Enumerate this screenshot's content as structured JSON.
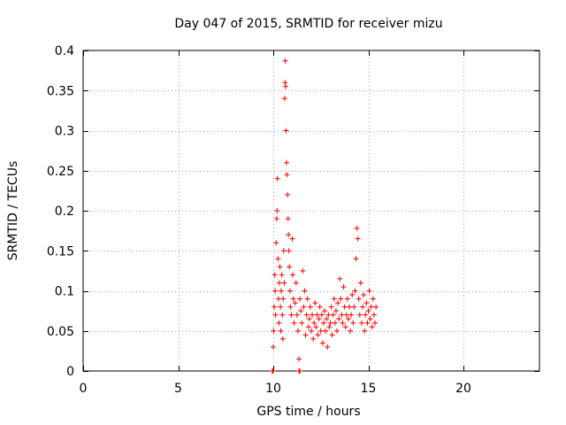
{
  "chart_data": {
    "type": "scatter",
    "title": "Day 047 of 2015, SRMTID for receiver mizu",
    "xlabel": "GPS time / hours",
    "ylabel": "SRMTID / TECUs",
    "xlim": [
      0,
      24
    ],
    "ylim": [
      0,
      0.4
    ],
    "xticks": [
      0,
      5,
      10,
      15,
      20
    ],
    "yticks": [
      0,
      0.05,
      0.1,
      0.15,
      0.2,
      0.25,
      0.3,
      0.35,
      0.4
    ],
    "xtick_labels": [
      "0",
      "5",
      "10",
      "15",
      "20"
    ],
    "ytick_labels": [
      "0",
      "0.05",
      "0.1",
      "0.15",
      "0.2",
      "0.25",
      "0.3",
      "0.35",
      "0.4"
    ],
    "grid": true,
    "marker": "+",
    "color": "#ff0000",
    "series": [
      {
        "name": "mizu",
        "points": [
          [
            9.95,
            0.0
          ],
          [
            10.0,
            0.0
          ],
          [
            11.35,
            0.0
          ],
          [
            11.4,
            0.0
          ],
          [
            10.0,
            0.03
          ],
          [
            10.02,
            0.05
          ],
          [
            10.05,
            0.08
          ],
          [
            10.08,
            0.12
          ],
          [
            10.1,
            0.1
          ],
          [
            10.12,
            0.07
          ],
          [
            10.15,
            0.16
          ],
          [
            10.18,
            0.19
          ],
          [
            10.2,
            0.2
          ],
          [
            10.22,
            0.24
          ],
          [
            10.25,
            0.14
          ],
          [
            10.28,
            0.09
          ],
          [
            10.3,
            0.06
          ],
          [
            10.32,
            0.11
          ],
          [
            10.35,
            0.13
          ],
          [
            10.38,
            0.08
          ],
          [
            10.4,
            0.05
          ],
          [
            10.42,
            0.1
          ],
          [
            10.45,
            0.12
          ],
          [
            10.48,
            0.07
          ],
          [
            10.5,
            0.04
          ],
          [
            10.52,
            0.09
          ],
          [
            10.55,
            0.15
          ],
          [
            10.58,
            0.11
          ],
          [
            10.6,
            0.34
          ],
          [
            10.62,
            0.36
          ],
          [
            10.63,
            0.387
          ],
          [
            10.65,
            0.355
          ],
          [
            10.67,
            0.3
          ],
          [
            10.7,
            0.26
          ],
          [
            10.72,
            0.245
          ],
          [
            10.75,
            0.22
          ],
          [
            10.78,
            0.19
          ],
          [
            10.8,
            0.17
          ],
          [
            10.82,
            0.15
          ],
          [
            10.85,
            0.13
          ],
          [
            10.88,
            0.1
          ],
          [
            10.9,
            0.08
          ],
          [
            10.95,
            0.07
          ],
          [
            11.0,
            0.165
          ],
          [
            11.02,
            0.12
          ],
          [
            11.05,
            0.09
          ],
          [
            11.1,
            0.06
          ],
          [
            11.15,
            0.085
          ],
          [
            11.2,
            0.11
          ],
          [
            11.25,
            0.07
          ],
          [
            11.3,
            0.05
          ],
          [
            11.35,
            0.015
          ],
          [
            11.4,
            0.09
          ],
          [
            11.45,
            0.075
          ],
          [
            11.5,
            0.06
          ],
          [
            11.55,
            0.125
          ],
          [
            11.6,
            0.08
          ],
          [
            11.65,
            0.1
          ],
          [
            11.7,
            0.045
          ],
          [
            11.75,
            0.07
          ],
          [
            11.8,
            0.09
          ],
          [
            11.85,
            0.055
          ],
          [
            11.9,
            0.065
          ],
          [
            11.95,
            0.08
          ],
          [
            12.0,
            0.05
          ],
          [
            12.05,
            0.07
          ],
          [
            12.1,
            0.04
          ],
          [
            12.15,
            0.06
          ],
          [
            12.2,
            0.085
          ],
          [
            12.25,
            0.055
          ],
          [
            12.3,
            0.07
          ],
          [
            12.35,
            0.045
          ],
          [
            12.4,
            0.065
          ],
          [
            12.45,
            0.08
          ],
          [
            12.5,
            0.05
          ],
          [
            12.55,
            0.07
          ],
          [
            12.6,
            0.035
          ],
          [
            12.65,
            0.06
          ],
          [
            12.7,
            0.075
          ],
          [
            12.75,
            0.05
          ],
          [
            12.8,
            0.065
          ],
          [
            12.85,
            0.03
          ],
          [
            12.9,
            0.07
          ],
          [
            12.95,
            0.055
          ],
          [
            13.0,
            0.06
          ],
          [
            13.05,
            0.08
          ],
          [
            13.1,
            0.045
          ],
          [
            13.15,
            0.07
          ],
          [
            13.2,
            0.09
          ],
          [
            13.25,
            0.06
          ],
          [
            13.3,
            0.075
          ],
          [
            13.35,
            0.05
          ],
          [
            13.4,
            0.085
          ],
          [
            13.45,
            0.065
          ],
          [
            13.5,
            0.115
          ],
          [
            13.55,
            0.09
          ],
          [
            13.6,
            0.07
          ],
          [
            13.65,
            0.06
          ],
          [
            13.7,
            0.105
          ],
          [
            13.75,
            0.08
          ],
          [
            13.8,
            0.055
          ],
          [
            13.85,
            0.07
          ],
          [
            13.9,
            0.09
          ],
          [
            13.95,
            0.065
          ],
          [
            14.0,
            0.08
          ],
          [
            14.05,
            0.05
          ],
          [
            14.1,
            0.07
          ],
          [
            14.15,
            0.095
          ],
          [
            14.2,
            0.06
          ],
          [
            14.25,
            0.08
          ],
          [
            14.3,
            0.1
          ],
          [
            14.35,
            0.14
          ],
          [
            14.4,
            0.178
          ],
          [
            14.45,
            0.165
          ],
          [
            14.5,
            0.09
          ],
          [
            14.55,
            0.07
          ],
          [
            14.6,
            0.11
          ],
          [
            14.65,
            0.06
          ],
          [
            14.7,
            0.08
          ],
          [
            14.75,
            0.095
          ],
          [
            14.8,
            0.05
          ],
          [
            14.85,
            0.07
          ],
          [
            14.9,
            0.085
          ],
          [
            14.95,
            0.06
          ],
          [
            15.0,
            0.075
          ],
          [
            15.05,
            0.1
          ],
          [
            15.1,
            0.065
          ],
          [
            15.15,
            0.08
          ],
          [
            15.2,
            0.055
          ],
          [
            15.25,
            0.09
          ],
          [
            15.3,
            0.07
          ],
          [
            15.35,
            0.06
          ],
          [
            15.4,
            0.08
          ]
        ]
      }
    ]
  }
}
